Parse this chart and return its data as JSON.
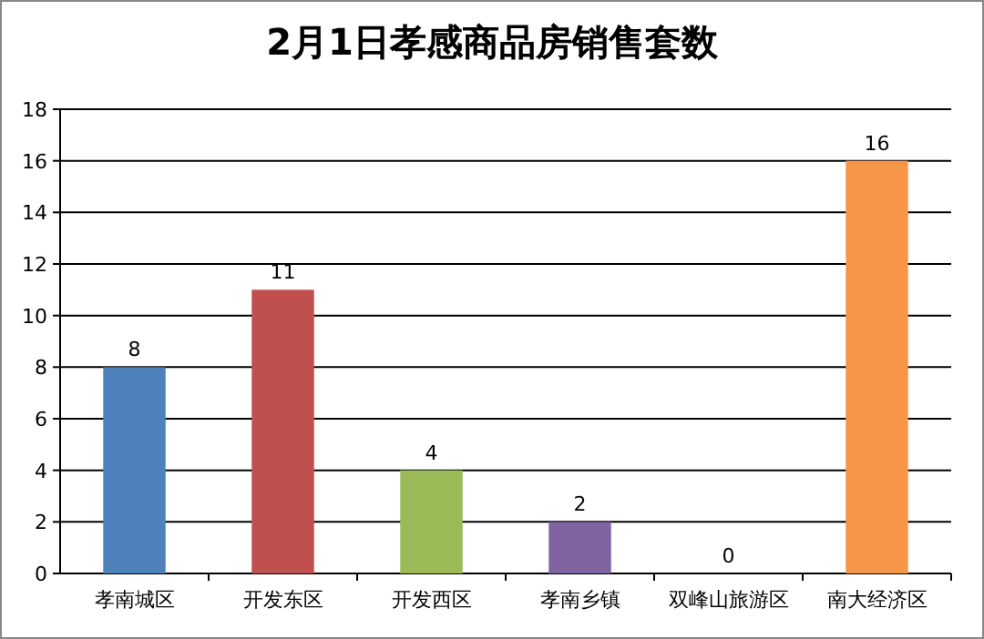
{
  "chart_data": {
    "type": "bar",
    "title": "2月1日孝感商品房销售套数",
    "categories": [
      "孝南城区",
      "开发东区",
      "开发西区",
      "孝南乡镇",
      "双峰山旅游区",
      "南大经济区"
    ],
    "values": [
      8,
      11,
      4,
      2,
      0,
      16
    ],
    "colors": [
      "#4f81bd",
      "#c0504d",
      "#9bbb59",
      "#8064a2",
      "#4bacc6",
      "#f79646"
    ],
    "ylim": [
      0,
      18
    ],
    "yticks": [
      0,
      2,
      4,
      6,
      8,
      10,
      12,
      14,
      16,
      18
    ],
    "grid": "y",
    "data_labels": true
  }
}
